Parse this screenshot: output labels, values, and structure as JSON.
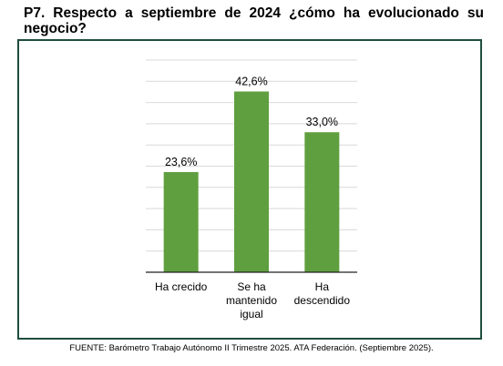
{
  "question": "P7. Respecto a septiembre de 2024 ¿cómo ha evolucionado su negocio?",
  "source": "FUENTE: Barómetro Trabajo Autónomo II Trimestre 2025. ATA Federación. (Septiembre 2025).",
  "colors": {
    "bar": "#5f9f3f",
    "frame": "#1f4e3d",
    "grid": "#d9d9d9",
    "axis": "#222222"
  },
  "chart_data": {
    "type": "bar",
    "categories": [
      [
        "Ha crecido"
      ],
      [
        "Se ha",
        "mantenido",
        "igual"
      ],
      [
        "Ha",
        "descendido"
      ]
    ],
    "values": [
      23.6,
      42.6,
      33.0
    ],
    "data_labels": [
      "23,6%",
      "42,6%",
      "33,0%"
    ],
    "ylim": [
      0,
      50
    ],
    "grid": true,
    "axis_labels_visible": false
  }
}
